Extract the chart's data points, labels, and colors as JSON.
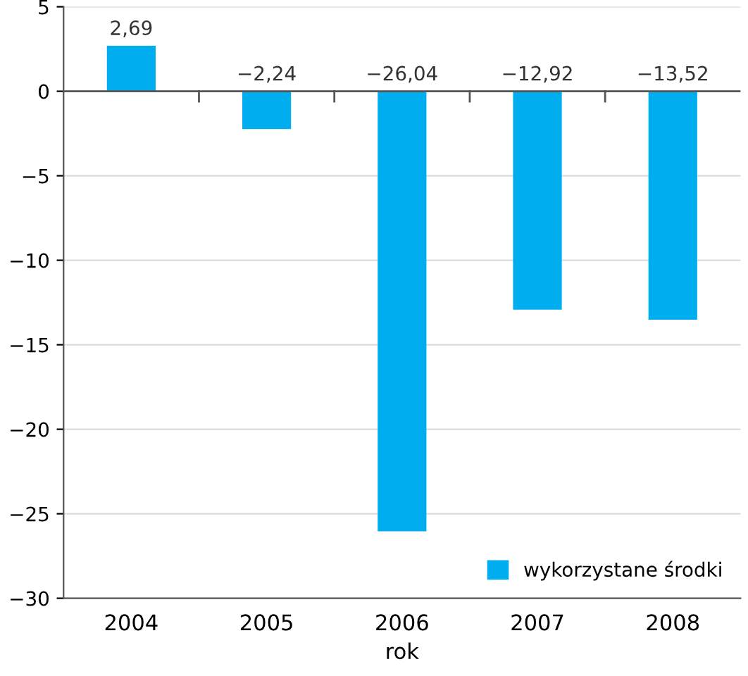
{
  "chart_data": {
    "type": "bar",
    "xlabel": "rok",
    "categories": [
      "2004",
      "2005",
      "2006",
      "2007",
      "2008"
    ],
    "series": [
      {
        "name": "wykorzystane środki",
        "color": "#00aeef",
        "values": [
          2.69,
          -2.24,
          -26.04,
          -12.92,
          -13.52
        ],
        "value_labels": [
          "2,69",
          "−2,24",
          "−26,04",
          "−12,92",
          "−13,52"
        ]
      }
    ],
    "ylim": [
      -30,
      5
    ],
    "yticks": [
      5,
      0,
      {
        "value": -5,
        "label": "−5"
      },
      {
        "value": -10,
        "label": "−10"
      },
      {
        "value": -15,
        "label": "−15"
      },
      {
        "value": -20,
        "label": "−20"
      },
      {
        "value": -25,
        "label": "−25"
      },
      {
        "value": -30,
        "label": "−30"
      }
    ],
    "grid": "y",
    "legend": "bottom right"
  }
}
